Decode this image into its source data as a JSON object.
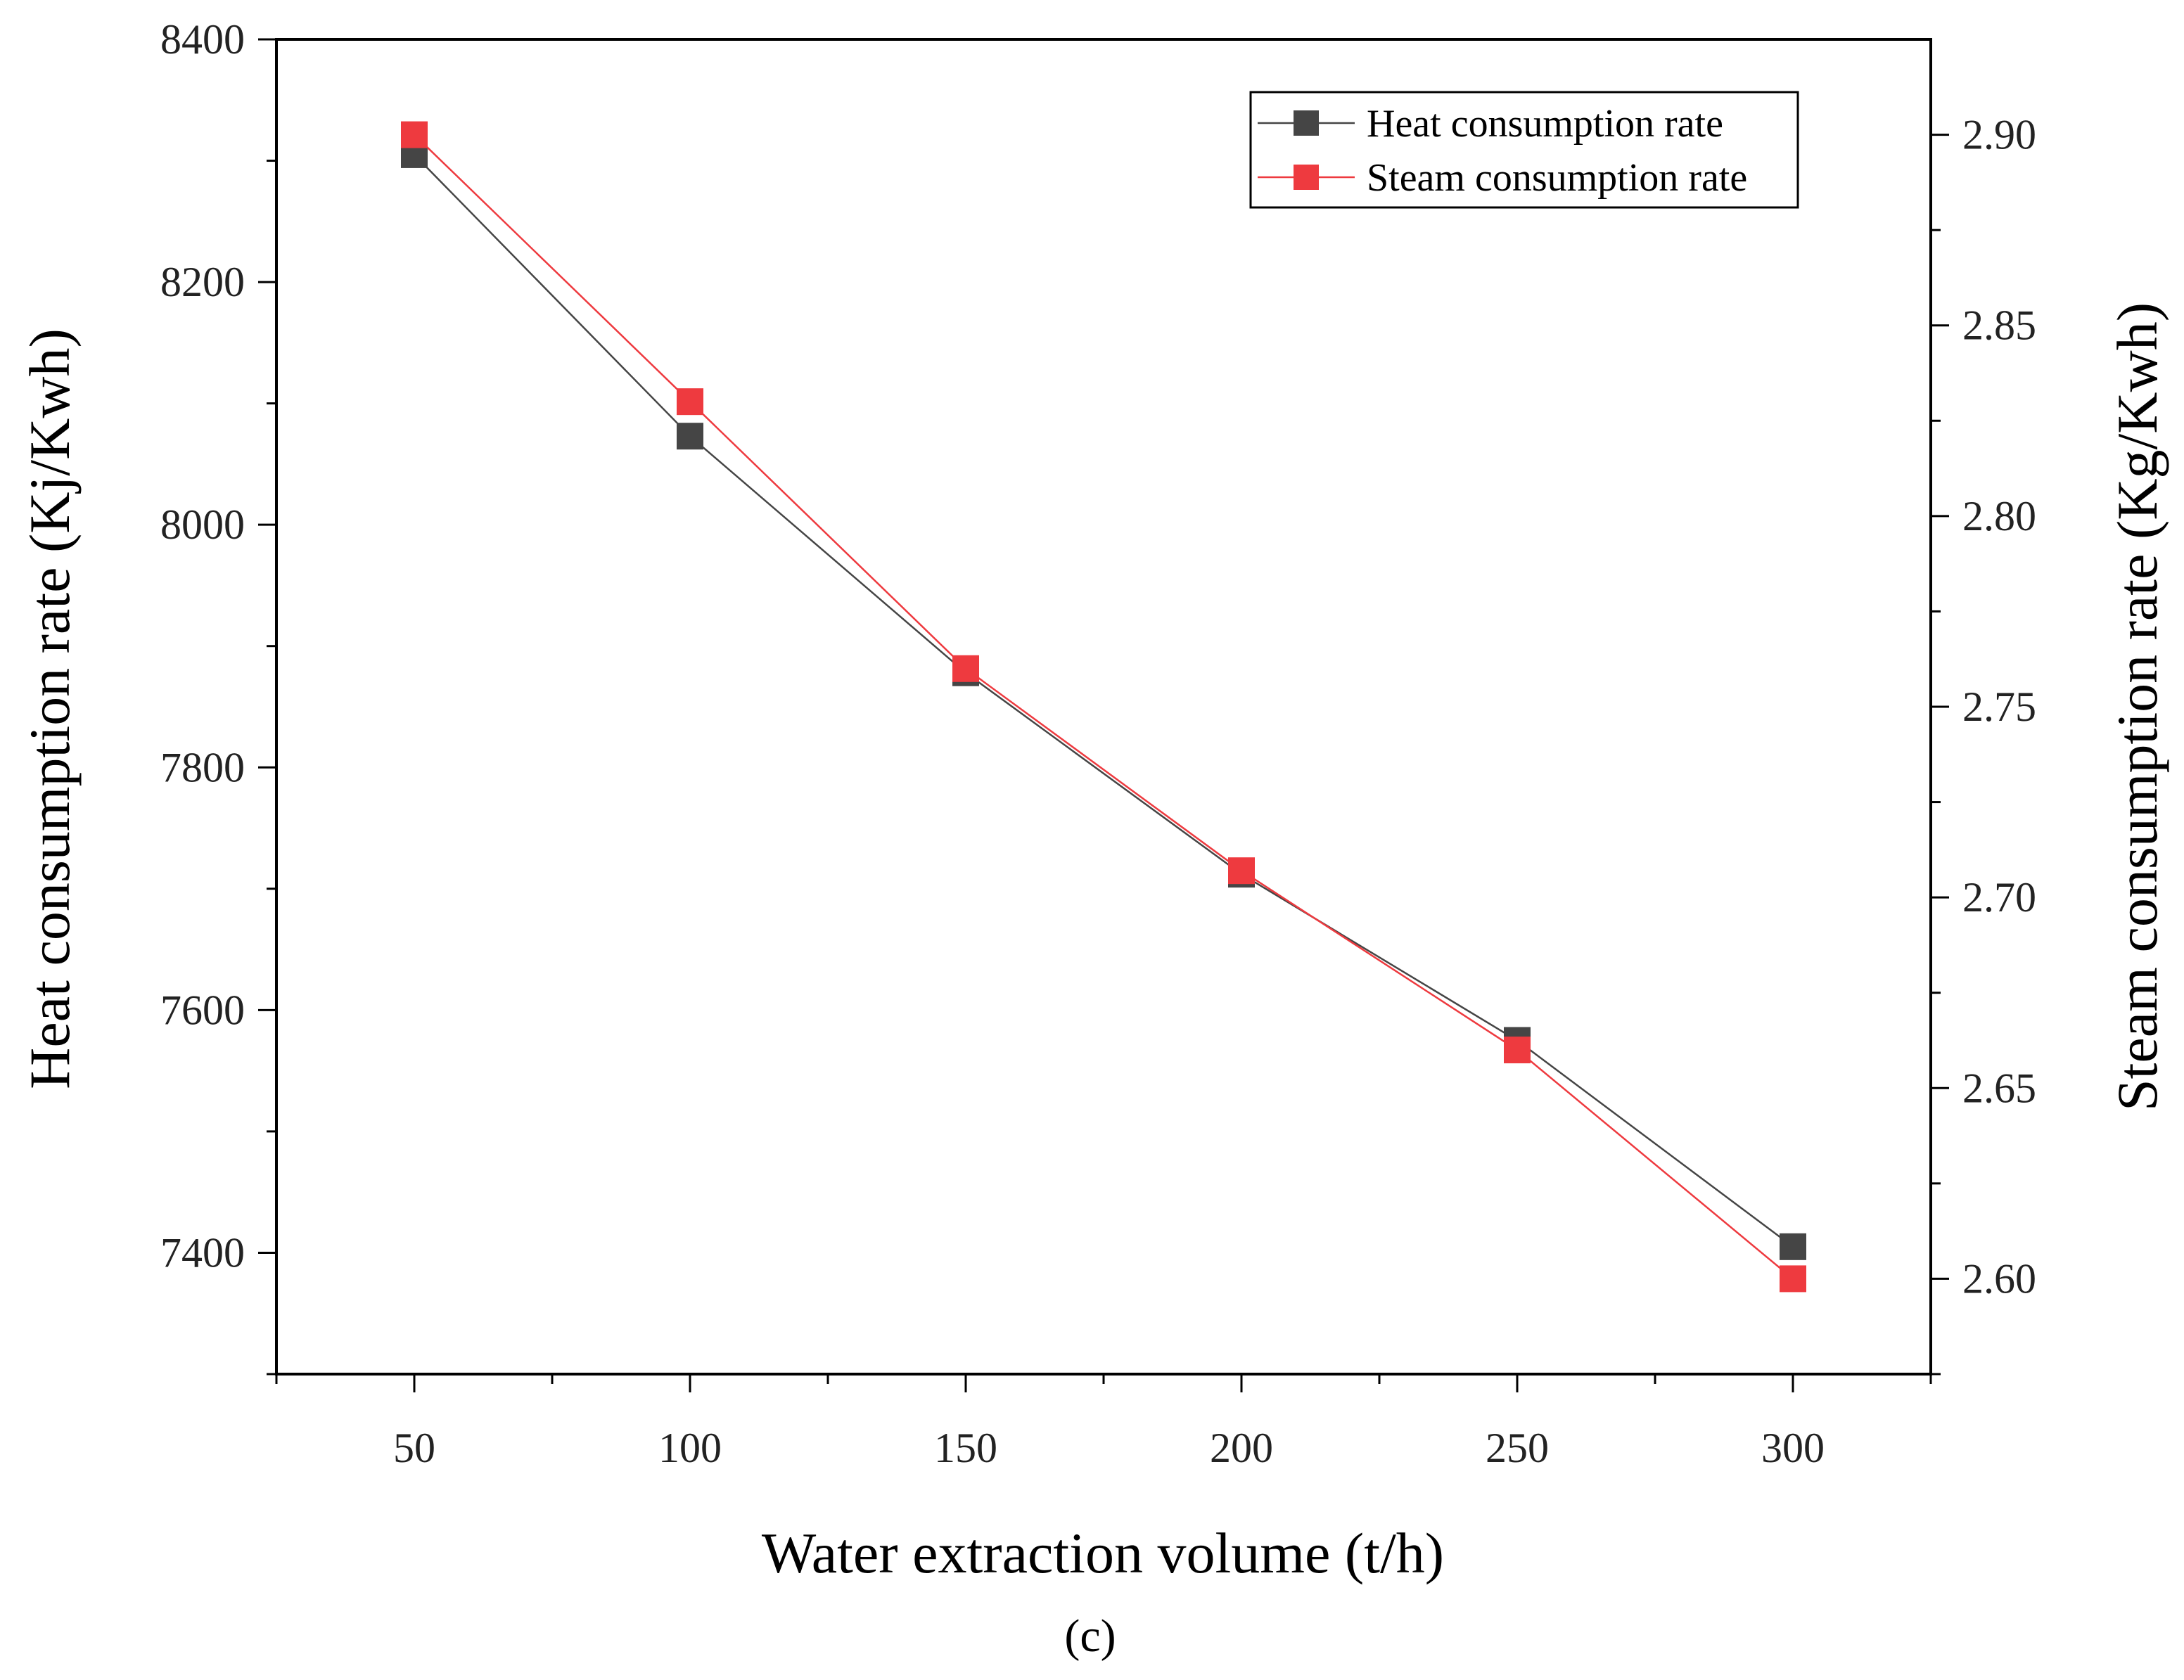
{
  "caption": "(c)",
  "chart_data": {
    "type": "line",
    "x_label": "Water extraction volume (t/h)",
    "x_ticks": [
      "50",
      "100",
      "150",
      "200",
      "250",
      "300"
    ],
    "x_range": [
      25,
      325
    ],
    "x": [
      50,
      100,
      150,
      200,
      250,
      300
    ],
    "y_left": {
      "label": "Heat consumption rate (Kj/Kwh)",
      "range": [
        7300,
        8400
      ],
      "ticks": [
        "7400",
        "7600",
        "7800",
        "8000",
        "8200",
        "8400"
      ]
    },
    "y_right": {
      "label": "Steam consumption rate (Kg/Kwh)",
      "range": [
        2.575,
        2.925
      ],
      "ticks": [
        "2.60",
        "2.65",
        "2.70",
        "2.75",
        "2.80",
        "2.85",
        "2.90"
      ]
    },
    "series": [
      {
        "name": "Heat consumption rate",
        "axis": "left",
        "color": "#454545",
        "values": [
          8305,
          8073,
          7878,
          7712,
          7575,
          7405
        ]
      },
      {
        "name": "Steam consumption rate",
        "axis": "right",
        "color": "#ee3a3f",
        "values": [
          2.9,
          2.83,
          2.76,
          2.707,
          2.66,
          2.6
        ]
      }
    ],
    "legend_position": "top-right"
  }
}
